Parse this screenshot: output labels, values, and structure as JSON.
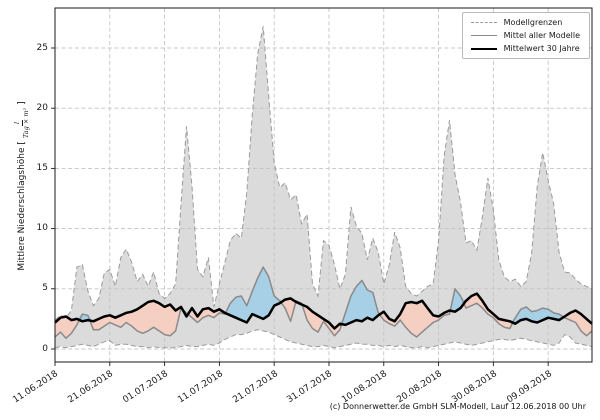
{
  "chart_data": {
    "type": "line",
    "title": "",
    "description": "Ensemble precipitation forecast: model range band, model mean and 30-year mean",
    "ylabel": {
      "prefix": "Mittlere Niederschlagshöhe [",
      "unit_numerator": "l",
      "unit_denominator": "Tag × m²",
      "suffix": "]"
    },
    "xlabel": "",
    "ylim": [
      -1.1,
      28.3
    ],
    "grid": true,
    "sampling": "daily",
    "x_start": "11.06.2018",
    "y_ticks": [
      {
        "value": 0,
        "label": "0"
      },
      {
        "value": 5,
        "label": "5"
      },
      {
        "value": 10,
        "label": "10"
      },
      {
        "value": 15,
        "label": "15"
      },
      {
        "value": 20,
        "label": "20"
      },
      {
        "value": 25,
        "label": "25"
      }
    ],
    "x_ticks": [
      {
        "day": 0,
        "label": "11.06.2018"
      },
      {
        "day": 10,
        "label": "21.06.2018"
      },
      {
        "day": 20,
        "label": "01.07.2018"
      },
      {
        "day": 30,
        "label": "11.07.2018"
      },
      {
        "day": 40,
        "label": "21.07.2018"
      },
      {
        "day": 50,
        "label": "31.07.2018"
      },
      {
        "day": 60,
        "label": "10.08.2018"
      },
      {
        "day": 70,
        "label": "20.08.2018"
      },
      {
        "day": 80,
        "label": "30.08.2018"
      },
      {
        "day": 90,
        "label": "09.09.2018"
      }
    ],
    "legend": [
      {
        "label": "Modellgrenzen",
        "sample": "dashed"
      },
      {
        "label": "Mittel aller Modelle",
        "sample": "gray"
      },
      {
        "label": "Mittelwert 30 Jahre",
        "sample": "black"
      }
    ],
    "legend_position": "upper right",
    "colors": {
      "band": "#dbdbdb",
      "boundary": "#9b9b9b",
      "above_normal": "#a7cfe5",
      "below_normal": "#f4cfc2",
      "model_mean": "#8a8a8a",
      "mean_30y": "#000000",
      "grid": "#c4c4c4",
      "axis": "#1a1a1a"
    },
    "series": [
      {
        "name": "Modellgrenze oben",
        "role": "upper_bound",
        "style": "dashed-gray",
        "values": [
          2.4,
          2.8,
          2.6,
          3.2,
          6.8,
          7.0,
          4.8,
          3.6,
          4.2,
          6.3,
          6.6,
          5.2,
          7.6,
          8.3,
          7.2,
          5.6,
          6.2,
          5.2,
          6.4,
          4.6,
          4.2,
          4.6,
          5.4,
          12.0,
          18.5,
          13.5,
          6.6,
          6.0,
          7.6,
          3.5,
          5.4,
          7.2,
          9.0,
          9.6,
          9.2,
          13.0,
          19.5,
          24.5,
          26.8,
          21.0,
          15.5,
          13.4,
          13.8,
          12.4,
          12.8,
          10.4,
          11.2,
          5.4,
          4.4,
          9.0,
          8.6,
          7.0,
          5.0,
          6.2,
          11.8,
          10.2,
          9.6,
          7.4,
          9.2,
          8.0,
          5.4,
          7.0,
          9.7,
          8.4,
          5.2,
          4.6,
          4.4,
          4.8,
          5.2,
          5.4,
          9.0,
          16.0,
          19.0,
          14.5,
          12.2,
          8.8,
          9.0,
          8.2,
          11.0,
          14.2,
          11.5,
          7.4,
          6.0,
          5.6,
          5.8,
          5.2,
          5.6,
          8.0,
          13.5,
          16.3,
          14.0,
          12.1,
          8.0,
          6.4,
          6.3,
          5.8,
          5.4,
          5.2,
          5.0
        ]
      },
      {
        "name": "Modellgrenze unten",
        "role": "lower_bound",
        "style": "dashed-gray",
        "values": [
          0.1,
          0.2,
          0.1,
          0.2,
          0.3,
          0.4,
          0.3,
          0.2,
          0.4,
          0.6,
          0.7,
          0.3,
          0.4,
          0.4,
          0.3,
          0.2,
          0.2,
          0.1,
          0.2,
          0.1,
          0.1,
          0.1,
          0.1,
          0.2,
          0.3,
          0.2,
          0.2,
          0.3,
          0.4,
          0.3,
          0.5,
          0.8,
          1.0,
          1.2,
          1.2,
          1.3,
          1.5,
          1.6,
          1.5,
          1.4,
          1.2,
          1.0,
          0.8,
          0.6,
          0.5,
          0.4,
          0.3,
          0.2,
          0.2,
          0.3,
          0.2,
          0.1,
          0.2,
          0.3,
          0.4,
          0.5,
          0.4,
          0.4,
          0.3,
          0.3,
          0.2,
          0.3,
          0.2,
          0.3,
          0.2,
          0.1,
          0.1,
          0.2,
          0.1,
          0.2,
          0.3,
          0.4,
          0.5,
          0.6,
          0.5,
          0.4,
          0.3,
          0.4,
          0.5,
          0.6,
          0.7,
          0.8,
          0.8,
          0.7,
          0.8,
          0.9,
          0.8,
          0.7,
          0.6,
          0.5,
          0.4,
          0.3,
          0.5,
          1.2,
          1.0,
          0.5,
          0.4,
          0.3,
          0.2
        ]
      },
      {
        "name": "Mittel aller Modelle",
        "role": "model_mean",
        "style": "solid-gray",
        "values": [
          1.0,
          1.4,
          0.9,
          1.3,
          2.0,
          2.9,
          2.8,
          1.6,
          1.6,
          1.9,
          2.2,
          2.0,
          1.8,
          2.2,
          1.9,
          1.5,
          1.3,
          1.5,
          1.8,
          1.5,
          1.2,
          1.1,
          1.5,
          3.4,
          3.0,
          2.6,
          2.2,
          2.6,
          2.8,
          2.6,
          3.0,
          2.9,
          3.8,
          4.3,
          4.4,
          3.6,
          4.8,
          5.9,
          6.8,
          6.0,
          4.4,
          4.0,
          3.4,
          2.3,
          4.0,
          3.8,
          2.4,
          1.7,
          1.4,
          2.3,
          1.7,
          1.1,
          1.6,
          3.0,
          4.4,
          5.2,
          5.7,
          4.9,
          4.7,
          3.0,
          2.4,
          2.1,
          1.9,
          2.4,
          1.8,
          1.3,
          1.0,
          1.4,
          1.8,
          2.2,
          2.4,
          2.8,
          2.9,
          5.0,
          4.4,
          3.4,
          3.6,
          3.8,
          3.4,
          2.9,
          2.6,
          2.1,
          1.8,
          1.7,
          2.6,
          3.3,
          3.5,
          3.1,
          3.2,
          3.4,
          3.3,
          3.0,
          2.9,
          2.6,
          2.4,
          2.2,
          1.5,
          1.1,
          1.5
        ]
      },
      {
        "name": "Mittelwert 30 Jahre",
        "role": "mean_30y",
        "style": "solid-black",
        "values": [
          2.2,
          2.6,
          2.7,
          2.4,
          2.5,
          2.3,
          2.4,
          2.3,
          2.5,
          2.7,
          2.8,
          2.6,
          2.8,
          3.0,
          3.1,
          3.3,
          3.6,
          3.9,
          4.0,
          3.8,
          3.5,
          3.7,
          3.2,
          3.5,
          2.7,
          3.4,
          2.7,
          3.3,
          3.4,
          3.1,
          3.3,
          3.0,
          2.8,
          2.6,
          2.4,
          2.2,
          2.9,
          2.7,
          2.5,
          2.8,
          3.6,
          3.8,
          4.1,
          4.2,
          3.9,
          3.7,
          3.5,
          3.1,
          2.8,
          2.5,
          2.2,
          1.7,
          2.1,
          2.0,
          2.2,
          2.4,
          2.3,
          2.6,
          2.4,
          2.8,
          3.1,
          2.5,
          2.3,
          2.9,
          3.8,
          3.9,
          3.8,
          4.0,
          3.4,
          2.8,
          2.7,
          3.0,
          3.2,
          3.1,
          3.4,
          4.0,
          4.4,
          4.6,
          4.0,
          3.3,
          2.9,
          2.5,
          2.4,
          2.3,
          2.1,
          2.4,
          2.5,
          2.3,
          2.2,
          2.4,
          2.6,
          2.5,
          2.4,
          2.7,
          3.0,
          3.2,
          2.9,
          2.5,
          2.1
        ]
      }
    ]
  },
  "footer": {
    "copyright": "(c) Donnerwetter.de GmbH SLM-Modell, Lauf 12.06.2018 00 Uhr"
  }
}
